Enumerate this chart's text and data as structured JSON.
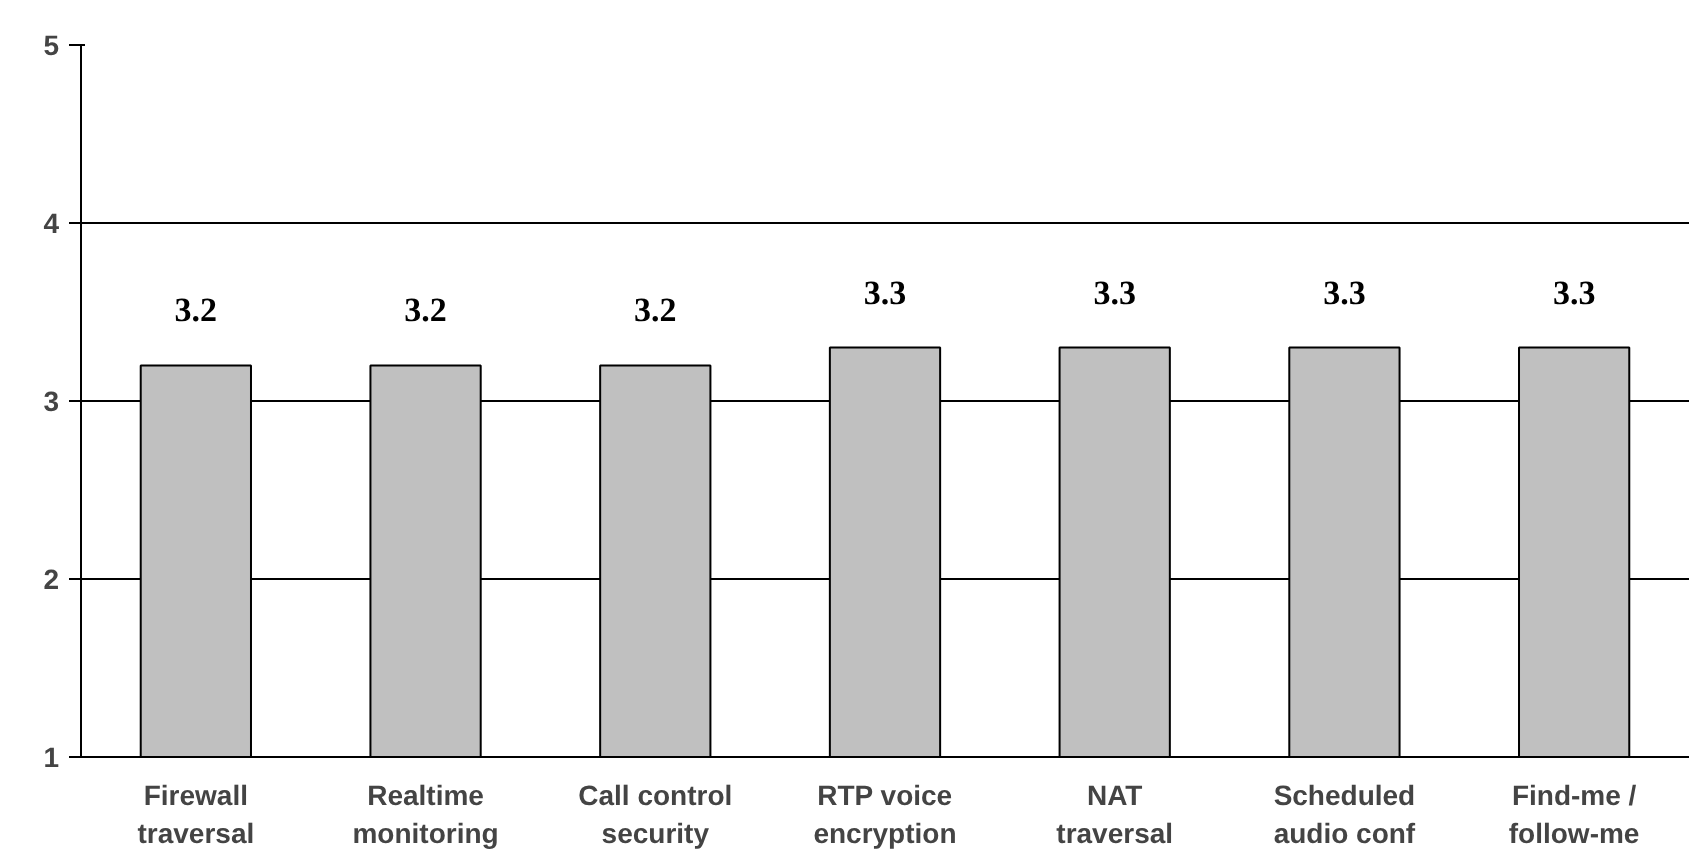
{
  "chart_data": {
    "type": "bar",
    "categories": [
      "Firewall traversal",
      "Realtime monitoring",
      "Call control security",
      "RTP voice encryption",
      "NAT traversal",
      "Scheduled audio conf",
      "Find-me / follow-me"
    ],
    "values": [
      3.2,
      3.2,
      3.2,
      3.3,
      3.3,
      3.3,
      3.3
    ],
    "color": "#c0c0c0",
    "ylim": [
      1,
      5
    ],
    "yticks": [
      1,
      2,
      3,
      4,
      5
    ],
    "grid": "y",
    "data_labels": true
  }
}
